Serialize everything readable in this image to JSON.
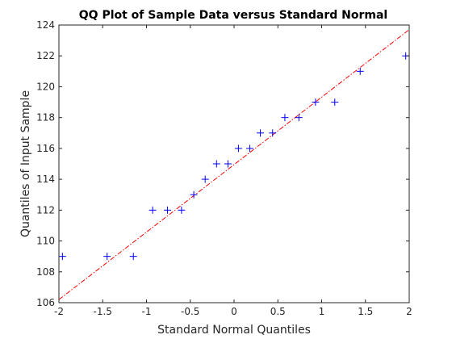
{
  "chart_data": {
    "type": "scatter",
    "title": "QQ Plot of Sample Data versus Standard Normal",
    "xlabel": "Standard Normal Quantiles",
    "ylabel": "Quantiles of Input Sample",
    "xlim": [
      -2,
      2
    ],
    "ylim": [
      106,
      124
    ],
    "xticks": [
      -2,
      -1.5,
      -1,
      -0.5,
      0,
      0.5,
      1,
      1.5,
      2
    ],
    "xtick_labels": [
      "-2",
      "-1.5",
      "-1",
      "-0.5",
      "0",
      "0.5",
      "1",
      "1.5",
      "2"
    ],
    "yticks": [
      106,
      108,
      110,
      112,
      114,
      116,
      118,
      120,
      122,
      124
    ],
    "ytick_labels": [
      "106",
      "108",
      "110",
      "112",
      "114",
      "116",
      "118",
      "120",
      "122",
      "124"
    ],
    "grid": false,
    "legend": "none",
    "series": [
      {
        "marker": "+",
        "color": "#0000ff",
        "x": [
          -1.96,
          -1.45,
          -1.15,
          -0.93,
          -0.76,
          -0.6,
          -0.46,
          -0.33,
          -0.2,
          -0.07,
          0.05,
          0.18,
          0.3,
          0.44,
          0.58,
          0.74,
          0.93,
          1.15,
          1.44,
          1.96
        ],
        "y": [
          109,
          109,
          109,
          112,
          112,
          112,
          113,
          114,
          115,
          115,
          116,
          116,
          117,
          117,
          118,
          118,
          119,
          119,
          121,
          122
        ]
      }
    ],
    "reference_line": {
      "style": "dash-dot",
      "color": "#ff0000",
      "x": [
        -2,
        2
      ],
      "y": [
        106.2,
        123.7
      ]
    }
  }
}
